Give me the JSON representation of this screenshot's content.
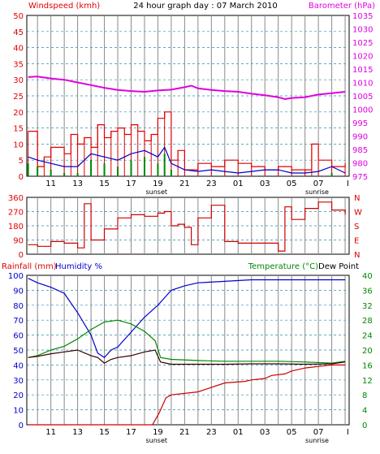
{
  "header": {
    "title": "24 hour graph day : 07 March 2010"
  },
  "colors": {
    "wind": "#e00000",
    "gust_bg": "#e00000",
    "wind_avg": "#0000cc",
    "wind_low": "#008800",
    "baro": "#e000e0",
    "dir": "#cc0000",
    "rain": "#cc0000",
    "humidity": "#0000cc",
    "temperature": "#008800",
    "dewpoint": "#330000",
    "grid": "#888888",
    "bg": "#ffffff"
  },
  "x_axis": {
    "ticks": [
      "11",
      "13",
      "15",
      "17",
      "19",
      "21",
      "23",
      "01",
      "03",
      "05",
      "07",
      "I"
    ],
    "sunset_label": "sunset",
    "sunrise_label": "sunrise",
    "sunset_hour": 18.9,
    "sunrise_hour": 30.9,
    "start_hour": 9.2,
    "end_hour": 33.3
  },
  "chart_data": [
    {
      "type": "line",
      "title": "24 hour graph day : 07 March 2010",
      "left_label": "Windspeed (kmh)",
      "right_label": "Barometer (hPa)",
      "left_ticks": [
        "50",
        "45",
        "40",
        "35",
        "30",
        "25",
        "20",
        "15",
        "10",
        "5",
        "0"
      ],
      "right_ticks": [
        "1035",
        "1030",
        "1025",
        "1020",
        "1015",
        "1010",
        "1005",
        "1000",
        "995",
        "990",
        "985",
        "980",
        "975"
      ],
      "ylim_left": [
        0,
        50
      ],
      "ylim_right": [
        975,
        1035
      ],
      "series": [
        {
          "name": "Windspeed gust",
          "x": [
            9.3,
            10,
            10.5,
            11,
            12,
            12.5,
            13,
            13.5,
            14,
            14.5,
            15,
            15.5,
            16,
            16.5,
            17,
            17.5,
            18,
            18.5,
            19,
            19.5,
            20,
            20.5,
            21,
            22,
            23,
            24,
            25,
            26,
            27,
            28,
            29,
            30,
            30.5,
            31,
            32,
            33
          ],
          "values": [
            14,
            3,
            6,
            9,
            7,
            13,
            10,
            12,
            9,
            16,
            12,
            14,
            15,
            13,
            16,
            14,
            11,
            13,
            18,
            20,
            5,
            8,
            2,
            4,
            3,
            5,
            4,
            3,
            2,
            3,
            2,
            2,
            10,
            5,
            3,
            4
          ]
        },
        {
          "name": "Windspeed average",
          "x": [
            9.3,
            10,
            11,
            12,
            13,
            14,
            15,
            16,
            17,
            18,
            19,
            19.5,
            20,
            21,
            22,
            23,
            24,
            25,
            26,
            27,
            28,
            29,
            30,
            31,
            32,
            33
          ],
          "values": [
            6,
            5,
            4,
            3,
            3,
            7,
            6,
            5,
            7,
            8,
            6,
            9,
            4,
            2,
            1.5,
            2,
            1.5,
            1,
            1.5,
            2,
            2,
            1,
            1,
            1.5,
            3,
            1
          ]
        },
        {
          "name": "Barometer",
          "x": [
            9.3,
            10,
            11,
            12,
            13,
            14,
            15,
            16,
            17,
            18,
            19,
            20,
            21,
            21.5,
            22,
            23,
            24,
            25,
            26,
            27,
            28,
            28.5,
            29,
            30,
            31,
            32,
            33
          ],
          "values": [
            1012,
            1012.2,
            1011.5,
            1011,
            1010,
            1009,
            1008,
            1007.2,
            1006.8,
            1006.5,
            1007,
            1007.3,
            1008.2,
            1008.8,
            1007.8,
            1007.2,
            1006.8,
            1006.5,
            1005.8,
            1005.2,
            1004.5,
            1003.8,
            1004.2,
            1004.5,
            1005.5,
            1006,
            1006.5
          ]
        }
      ]
    },
    {
      "type": "line",
      "left_ticks": [
        "360",
        "270",
        "180",
        "90",
        "0"
      ],
      "right_ticks": [
        "N",
        "W",
        "S",
        "E",
        "N"
      ],
      "ylim": [
        0,
        360
      ],
      "series": [
        {
          "name": "Wind direction",
          "x": [
            9.3,
            10,
            11,
            12,
            13,
            13.5,
            14,
            15,
            16,
            17,
            18,
            19,
            19.5,
            20,
            20.5,
            21,
            21.5,
            22,
            23,
            24,
            25,
            26,
            27,
            28,
            28.5,
            29,
            30,
            31,
            32,
            33
          ],
          "values": [
            60,
            50,
            80,
            70,
            40,
            320,
            90,
            160,
            230,
            250,
            240,
            260,
            270,
            180,
            190,
            170,
            60,
            230,
            310,
            80,
            70,
            70,
            70,
            20,
            300,
            220,
            290,
            330,
            280,
            250
          ]
        }
      ]
    },
    {
      "type": "line",
      "left_label": "Rainfall (mm)",
      "left_label2": "Humidity %",
      "right_label": "Temperature (°C)",
      "right_label2": "Dew Point",
      "left_ticks": [
        "100",
        "90",
        "80",
        "70",
        "60",
        "50",
        "40",
        "30",
        "20",
        "10",
        "0"
      ],
      "right_ticks": [
        "40",
        "36",
        "32",
        "28",
        "24",
        "20",
        "16",
        "12",
        "8",
        "4",
        "0"
      ],
      "ylim_left": [
        0,
        100
      ],
      "ylim_right": [
        0,
        40
      ],
      "series": [
        {
          "name": "Humidity",
          "x": [
            9.3,
            10,
            11,
            12,
            13,
            14,
            14.5,
            15,
            15.5,
            16,
            17,
            18,
            19,
            19.5,
            20,
            21,
            22,
            24,
            26,
            28,
            30,
            32,
            33
          ],
          "values": [
            98,
            95,
            92,
            88,
            75,
            60,
            48,
            45,
            50,
            52,
            62,
            72,
            80,
            85,
            90,
            93,
            95,
            96,
            97,
            97,
            97,
            97,
            97
          ]
        },
        {
          "name": "Temperature",
          "x": [
            9.3,
            10,
            11,
            12,
            13,
            14,
            15,
            16,
            17,
            18,
            18.8,
            19.2,
            20,
            22,
            24,
            26,
            28,
            30,
            32,
            33
          ],
          "values": [
            18,
            18.5,
            20,
            21,
            23,
            25.5,
            27.5,
            28,
            27,
            25,
            22.5,
            18,
            17.5,
            17.2,
            17,
            17,
            17,
            16.8,
            16.5,
            17
          ]
        },
        {
          "name": "Dew Point",
          "x": [
            9.3,
            10,
            11,
            12,
            13,
            14,
            14.5,
            15,
            15.5,
            16,
            17,
            18,
            18.8,
            19.2,
            20,
            22,
            24,
            26,
            28,
            30,
            32,
            33
          ],
          "values": [
            18,
            18.3,
            19,
            19.5,
            20,
            18.5,
            18,
            16.5,
            17.5,
            18,
            18.5,
            19.5,
            20,
            16.8,
            16.2,
            16.2,
            16.2,
            16.3,
            16.3,
            16.2,
            16.3,
            16.8
          ]
        },
        {
          "name": "Rainfall",
          "x": [
            9.3,
            18.6,
            19.1,
            19.6,
            20,
            21,
            22,
            24,
            25.5,
            26,
            27,
            27.5,
            28.5,
            29,
            30,
            31,
            32,
            33
          ],
          "values": [
            0,
            0,
            8,
            18,
            20,
            21,
            22,
            28,
            29,
            30,
            31,
            33,
            34,
            36,
            38,
            39,
            40,
            40
          ]
        }
      ]
    }
  ]
}
